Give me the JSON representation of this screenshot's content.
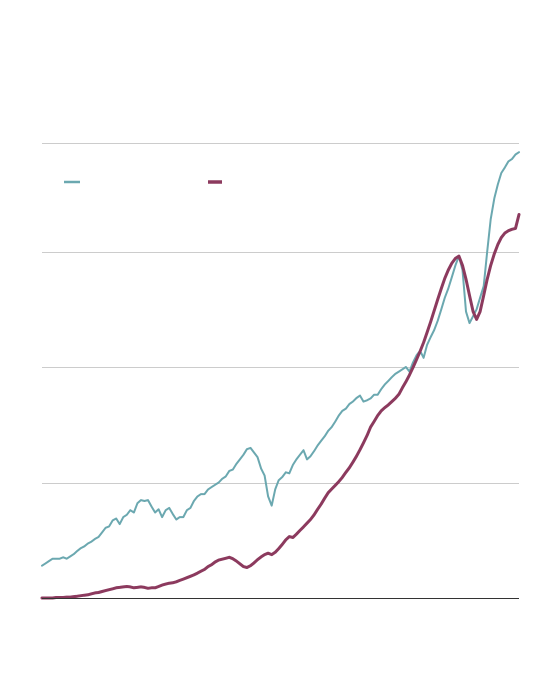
{
  "chart_data": {
    "type": "line",
    "title": "",
    "xlabel": "",
    "ylabel": "",
    "ylim": [
      0,
      1
    ],
    "gridlines": [
      0,
      0.25,
      0.5,
      0.75,
      0.985
    ],
    "grid": true,
    "legend_placement": "top-left",
    "series": [
      {
        "color": "#6ba8b0",
        "values": [
          0.07,
          0.075,
          0.08,
          0.085,
          0.085,
          0.085,
          0.088,
          0.085,
          0.09,
          0.095,
          0.102,
          0.108,
          0.112,
          0.118,
          0.122,
          0.128,
          0.132,
          0.142,
          0.152,
          0.155,
          0.168,
          0.172,
          0.16,
          0.175,
          0.18,
          0.19,
          0.185,
          0.205,
          0.212,
          0.21,
          0.212,
          0.198,
          0.185,
          0.192,
          0.175,
          0.19,
          0.195,
          0.182,
          0.17,
          0.175,
          0.175,
          0.19,
          0.195,
          0.21,
          0.22,
          0.225,
          0.225,
          0.235,
          0.24,
          0.245,
          0.25,
          0.258,
          0.263,
          0.275,
          0.278,
          0.29,
          0.3,
          0.31,
          0.322,
          0.325,
          0.315,
          0.305,
          0.28,
          0.265,
          0.22,
          0.2,
          0.235,
          0.255,
          0.262,
          0.272,
          0.27,
          0.288,
          0.3,
          0.31,
          0.32,
          0.3,
          0.307,
          0.318,
          0.33,
          0.34,
          0.35,
          0.362,
          0.37,
          0.382,
          0.395,
          0.405,
          0.41,
          0.42,
          0.425,
          0.433,
          0.438,
          0.425,
          0.428,
          0.432,
          0.44,
          0.44,
          0.452,
          0.462,
          0.47,
          0.478,
          0.485,
          0.49,
          0.495,
          0.5,
          0.49,
          0.51,
          0.525,
          0.535,
          0.52,
          0.548,
          0.565,
          0.58,
          0.6,
          0.625,
          0.65,
          0.67,
          0.695,
          0.72,
          0.74,
          0.71,
          0.62,
          0.595,
          0.61,
          0.625,
          0.65,
          0.675,
          0.75,
          0.82,
          0.865,
          0.895,
          0.92,
          0.932,
          0.945,
          0.95,
          0.96,
          0.965
        ]
      },
      {
        "color": "#8c3a5e",
        "values": [
          0,
          0,
          0,
          0,
          0.001,
          0.001,
          0.001,
          0.002,
          0.002,
          0.003,
          0.004,
          0.005,
          0.006,
          0.007,
          0.009,
          0.011,
          0.012,
          0.014,
          0.016,
          0.018,
          0.02,
          0.022,
          0.023,
          0.024,
          0.025,
          0.024,
          0.022,
          0.023,
          0.024,
          0.023,
          0.021,
          0.022,
          0.022,
          0.025,
          0.028,
          0.03,
          0.032,
          0.033,
          0.035,
          0.038,
          0.041,
          0.044,
          0.047,
          0.05,
          0.054,
          0.058,
          0.062,
          0.068,
          0.072,
          0.078,
          0.082,
          0.084,
          0.086,
          0.088,
          0.085,
          0.08,
          0.074,
          0.068,
          0.066,
          0.07,
          0.076,
          0.083,
          0.089,
          0.094,
          0.097,
          0.094,
          0.099,
          0.107,
          0.116,
          0.126,
          0.133,
          0.131,
          0.138,
          0.146,
          0.154,
          0.162,
          0.17,
          0.18,
          0.192,
          0.203,
          0.216,
          0.228,
          0.236,
          0.244,
          0.252,
          0.261,
          0.272,
          0.282,
          0.294,
          0.307,
          0.321,
          0.336,
          0.352,
          0.37,
          0.382,
          0.395,
          0.405,
          0.412,
          0.418,
          0.425,
          0.432,
          0.441,
          0.455,
          0.468,
          0.483,
          0.499,
          0.516,
          0.534,
          0.553,
          0.575,
          0.598,
          0.622,
          0.646,
          0.67,
          0.692,
          0.71,
          0.725,
          0.735,
          0.74,
          0.72,
          0.69,
          0.655,
          0.62,
          0.603,
          0.62,
          0.655,
          0.69,
          0.72,
          0.745,
          0.765,
          0.78,
          0.79,
          0.795,
          0.798,
          0.8,
          0.83
        ]
      }
    ]
  }
}
